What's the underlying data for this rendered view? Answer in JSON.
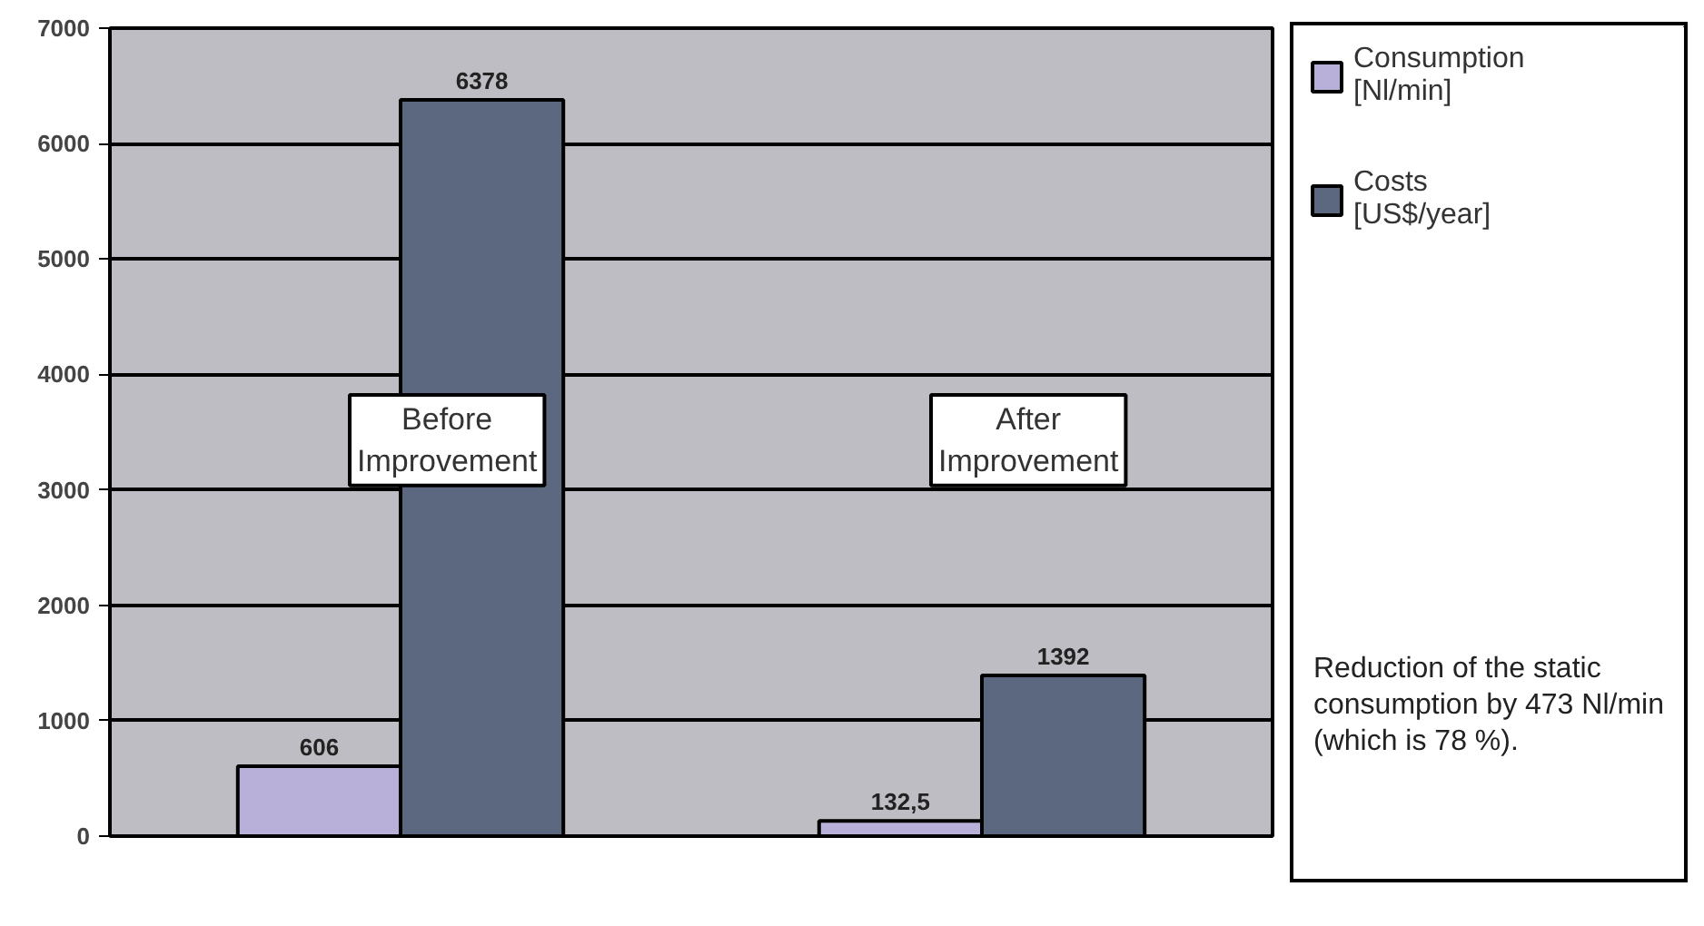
{
  "chart_data": {
    "type": "bar",
    "categories": [
      "Before Improvement",
      "After Improvement"
    ],
    "series": [
      {
        "name": "Consumption [Nl/min]",
        "color": "#b8b0d8",
        "values": [
          606,
          132.5
        ],
        "value_labels": [
          "606",
          "132,5"
        ]
      },
      {
        "name": "Costs [US$/year]",
        "color": "#5c6880",
        "values": [
          6378,
          1392
        ],
        "value_labels": [
          "6378",
          "1392"
        ]
      }
    ],
    "ylim": [
      0,
      7000
    ],
    "yticks": [
      0,
      1000,
      2000,
      3000,
      4000,
      5000,
      6000,
      7000
    ],
    "grid": "y",
    "legend": "right",
    "annotations": [
      "Reduction of the static consumption by 473 Nl/min (which is 78 %)."
    ]
  }
}
